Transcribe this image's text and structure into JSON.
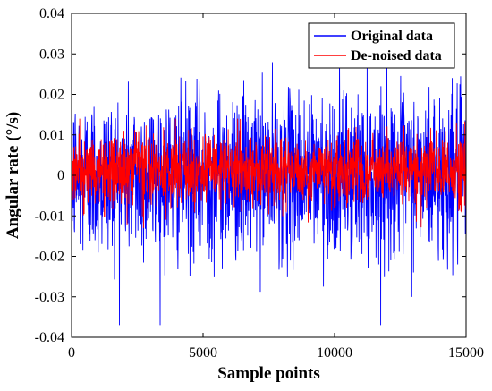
{
  "chart_data": {
    "type": "line",
    "title": "",
    "xlabel": "Sample points",
    "ylabel": "Angular rate  (°/s)",
    "xlim": [
      0,
      15000
    ],
    "ylim": [
      -0.04,
      0.04
    ],
    "x_ticks": [
      0,
      5000,
      10000,
      15000
    ],
    "x_tick_labels": [
      "0",
      "5000",
      "10000",
      "15000"
    ],
    "y_ticks": [
      -0.04,
      -0.03,
      -0.02,
      -0.01,
      0,
      0.01,
      0.02,
      0.03,
      0.04
    ],
    "y_tick_labels": [
      "-0.04",
      "-0.03",
      "-0.02",
      "-0.01",
      "0",
      "0.01",
      "0.02",
      "0.03",
      "0.04"
    ],
    "grid": false,
    "legend_position": "top-right",
    "series": [
      {
        "name": "Original data",
        "color": "#0000ff",
        "n_points": 15000,
        "mean": 0.0,
        "typical_range": [
          -0.02,
          0.02
        ],
        "min": -0.037,
        "max": 0.036
      },
      {
        "name": "De-noised data",
        "color": "#ff0000",
        "n_points": 15000,
        "mean": 0.001,
        "typical_range": [
          -0.008,
          0.01
        ],
        "min": -0.013,
        "max": 0.014
      }
    ]
  }
}
